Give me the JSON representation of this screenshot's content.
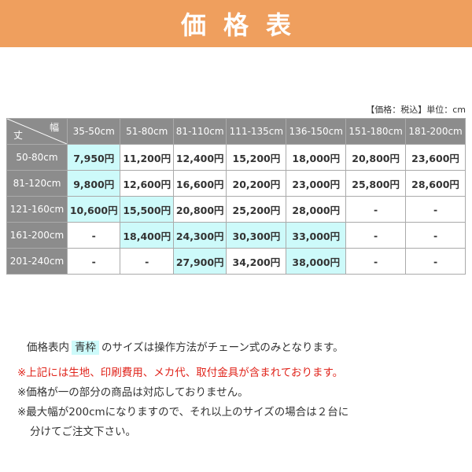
{
  "header": {
    "title": "価格表"
  },
  "unit_note": "【価格：税込】単位：cm",
  "table": {
    "corner": [
      "丈",
      "幅"
    ],
    "columns": [
      "35-50cm",
      "51-80cm",
      "81-110cm",
      "111-135cm",
      "136-150cm",
      "151-180cm",
      "181-200cm"
    ],
    "row_headers": [
      "50-80cm",
      "81-120cm",
      "121-160cm",
      "161-200cm",
      "201-240cm"
    ],
    "rows": [
      [
        "7,950円",
        "11,200円",
        "12,400円",
        "15,200円",
        "18,000円",
        "20,800円",
        "23,600円"
      ],
      [
        "9,800円",
        "12,600円",
        "16,600円",
        "20,200円",
        "23,000円",
        "25,800円",
        "28,600円"
      ],
      [
        "10,600円",
        "15,500円",
        "20,800円",
        "25,200円",
        "28,000円",
        "-",
        "-"
      ],
      [
        "-",
        "18,400円",
        "24,300円",
        "30,300円",
        "33,000円",
        "-",
        "-"
      ],
      [
        "-",
        "-",
        "27,900円",
        "34,200円",
        "38,000円",
        "-",
        "-"
      ]
    ],
    "highlight": [
      [
        true,
        false,
        false,
        false,
        false,
        false,
        false
      ],
      [
        true,
        false,
        false,
        false,
        false,
        false,
        false
      ],
      [
        true,
        true,
        false,
        false,
        false,
        false,
        false
      ],
      [
        false,
        true,
        true,
        true,
        true,
        false,
        false
      ],
      [
        false,
        false,
        true,
        false,
        true,
        false,
        false
      ]
    ]
  },
  "notes": {
    "line0": [
      "価格表内",
      "青枠",
      "のサイズは操作方法がチェーン式のみとなります。"
    ],
    "line1": "※上記には生地、印刷費用、メカ代、取付金具が含まれております。",
    "line2": "※価格が一の部分の商品は対応しておりません。",
    "line3": "※最大幅が200cmになりますので、それ以上のサイズの場合は２台に",
    "line4": "分けてご注文下さい。"
  }
}
